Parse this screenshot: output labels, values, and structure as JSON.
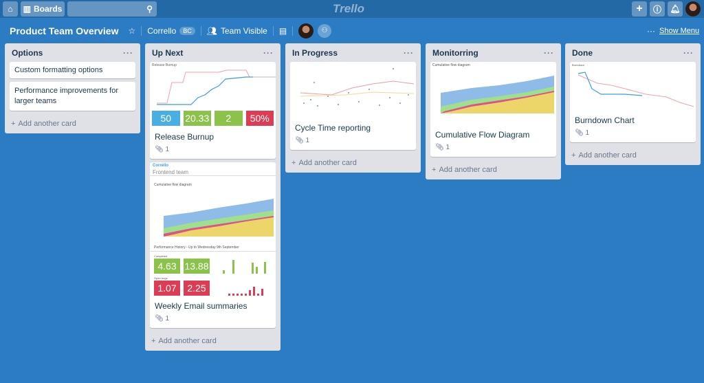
{
  "topbar": {
    "boards_label": "Boards",
    "search_placeholder": "",
    "logo": "Trello"
  },
  "board": {
    "title": "Product Team Overview",
    "team": "Corrello",
    "team_badge": "BC",
    "visibility": "Team Visible",
    "show_menu": "Show Menu"
  },
  "add_card_label": "Add another card",
  "lists": [
    {
      "title": "Options",
      "cards": [
        {
          "title": "Custom formatting options"
        },
        {
          "title": "Performance improvements for larger teams"
        }
      ]
    },
    {
      "title": "Up Next",
      "cards": [
        {
          "title": "Release Burnup",
          "attachments": "1",
          "chart_title": "Release Burnup",
          "tiles": [
            {
              "value": "50",
              "color": "#48afe0"
            },
            {
              "value": "20.33",
              "color": "#8bc34a"
            },
            {
              "value": "2",
              "color": "#8bc34a"
            },
            {
              "value": "50%",
              "color": "#dc3c54"
            }
          ]
        },
        {
          "title": "Weekly Email summaries",
          "attachments": "1",
          "brand": "Corrello",
          "team": "Frontend team",
          "chart_title": "Cumulative flow diagram",
          "history": "Performance History - Up to Wednesday 9th September",
          "completed_label": "Completed",
          "completed": [
            "4.63",
            "13.88"
          ],
          "bugs_label": "Open bugs",
          "bugs": [
            "1.07",
            "2.25"
          ]
        }
      ]
    },
    {
      "title": "In Progress",
      "cards": [
        {
          "title": "Cycle Time reporting",
          "attachments": "1"
        }
      ]
    },
    {
      "title": "Monitorring",
      "cards": [
        {
          "title": "Cumulative Flow Diagram",
          "attachments": "1",
          "chart_title": "Cumulative flow diagram"
        }
      ]
    },
    {
      "title": "Done",
      "cards": [
        {
          "title": "Burndown Chart",
          "attachments": "1",
          "chart_title": "Burndown"
        }
      ]
    }
  ]
}
